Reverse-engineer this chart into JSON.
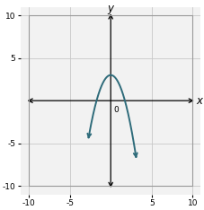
{
  "xlim": [
    -11,
    11
  ],
  "ylim": [
    -11,
    11
  ],
  "xlim_display": [
    -10,
    10
  ],
  "ylim_display": [
    -10,
    10
  ],
  "xticks": [
    -10,
    -5,
    5,
    10
  ],
  "yticks": [
    -10,
    -5,
    5,
    10
  ],
  "xlabel": "x",
  "ylabel": "y",
  "curve_color": "#2e6b7a",
  "curve_linewidth": 1.4,
  "a": -1,
  "b": 0,
  "c": 3,
  "x_plot_min": -2.65,
  "x_plot_max": 3.05,
  "grid_color": "#c8c8c8",
  "grid_linewidth": 0.6,
  "background_color": "#ffffff",
  "plot_bg_color": "#f2f2f2",
  "tick_fontsize": 6.5,
  "axis_label_fontsize": 8.5,
  "origin_label": "0"
}
